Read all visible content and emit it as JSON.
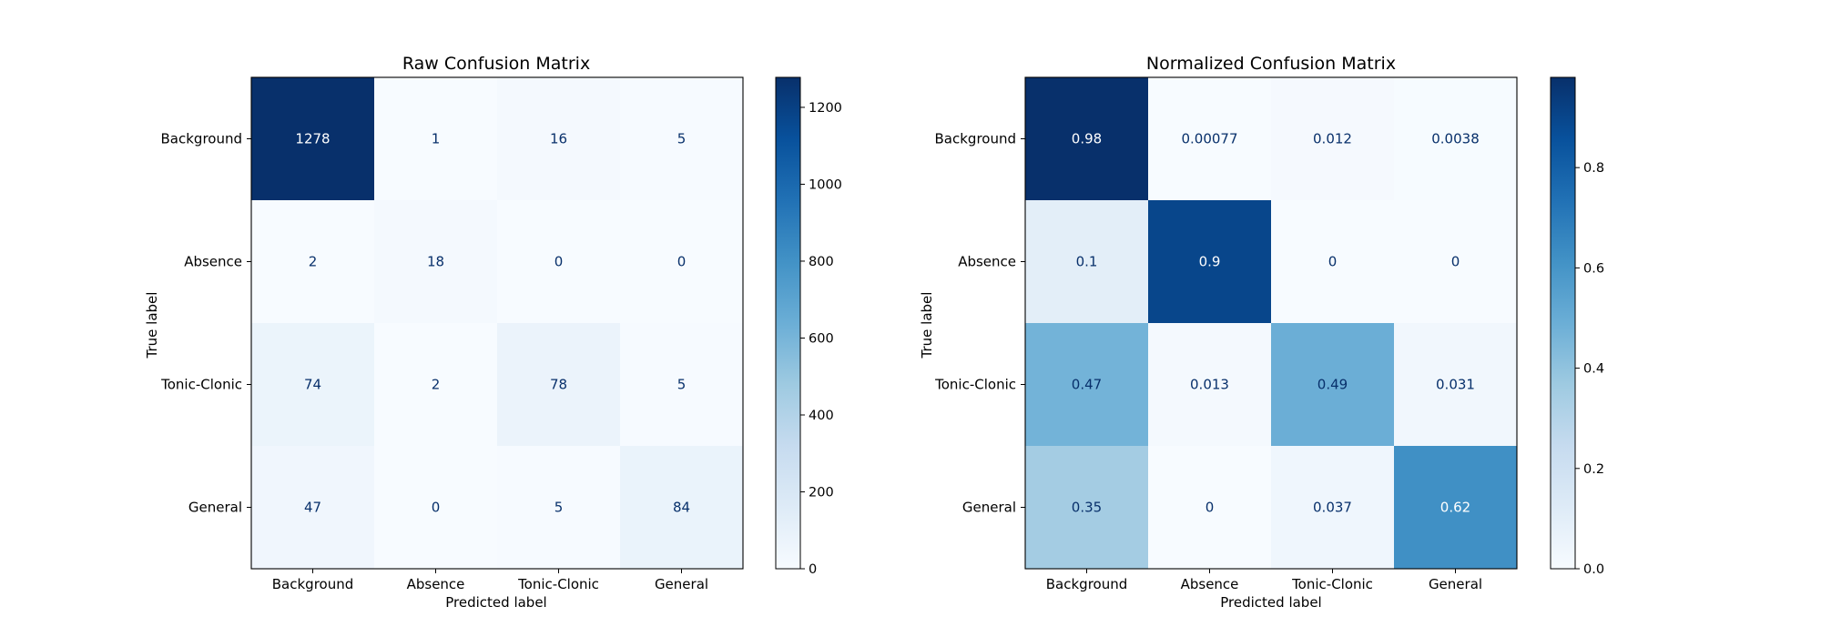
{
  "chart_data": [
    {
      "type": "heatmap",
      "title": "Raw Confusion Matrix",
      "xlabel": "Predicted label",
      "ylabel": "True label",
      "x_categories": [
        "Background",
        "Absence",
        "Tonic-Clonic",
        "General"
      ],
      "y_categories": [
        "Background",
        "Absence",
        "Tonic-Clonic",
        "General"
      ],
      "values": [
        [
          1278,
          1,
          16,
          5
        ],
        [
          2,
          18,
          0,
          0
        ],
        [
          74,
          2,
          78,
          5
        ],
        [
          47,
          0,
          5,
          84
        ]
      ],
      "value_labels": [
        [
          "1278",
          "1",
          "16",
          "5"
        ],
        [
          "2",
          "18",
          "0",
          "0"
        ],
        [
          "74",
          "2",
          "78",
          "5"
        ],
        [
          "47",
          "0",
          "5",
          "84"
        ]
      ],
      "colormap": "Blues",
      "colorbar": {
        "range": [
          0,
          1278
        ],
        "ticks": [
          0,
          200,
          400,
          600,
          800,
          1000,
          1200
        ],
        "tick_labels": [
          "0",
          "200",
          "400",
          "600",
          "800",
          "1000",
          "1200"
        ]
      }
    },
    {
      "type": "heatmap",
      "title": "Normalized Confusion Matrix",
      "xlabel": "Predicted label",
      "ylabel": "True label",
      "x_categories": [
        "Background",
        "Absence",
        "Tonic-Clonic",
        "General"
      ],
      "y_categories": [
        "Background",
        "Absence",
        "Tonic-Clonic",
        "General"
      ],
      "values": [
        [
          0.98,
          0.00077,
          0.012,
          0.0038
        ],
        [
          0.1,
          0.9,
          0,
          0
        ],
        [
          0.47,
          0.013,
          0.49,
          0.031
        ],
        [
          0.35,
          0,
          0.037,
          0.62
        ]
      ],
      "value_labels": [
        [
          "0.98",
          "0.00077",
          "0.012",
          "0.0038"
        ],
        [
          "0.1",
          "0.9",
          "0",
          "0"
        ],
        [
          "0.47",
          "0.013",
          "0.49",
          "0.031"
        ],
        [
          "0.35",
          "0",
          "0.037",
          "0.62"
        ]
      ],
      "colormap": "Blues",
      "colorbar": {
        "range": [
          0,
          0.98
        ],
        "ticks": [
          0,
          0.2,
          0.4,
          0.6,
          0.8
        ],
        "tick_labels": [
          "0.0",
          "0.2",
          "0.4",
          "0.6",
          "0.8"
        ]
      }
    }
  ]
}
